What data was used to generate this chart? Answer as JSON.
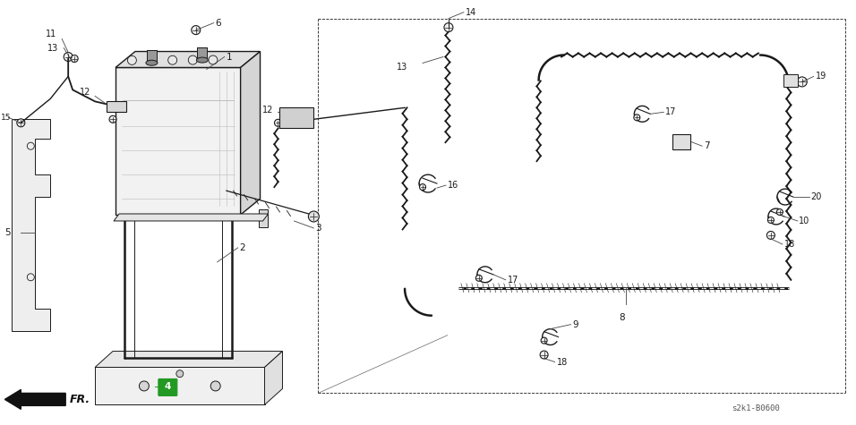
{
  "bg_color": "#ffffff",
  "line_color": "#1a1a1a",
  "fig_width": 9.56,
  "fig_height": 4.75,
  "dpi": 100,
  "watermark": "s2k1-B0600"
}
